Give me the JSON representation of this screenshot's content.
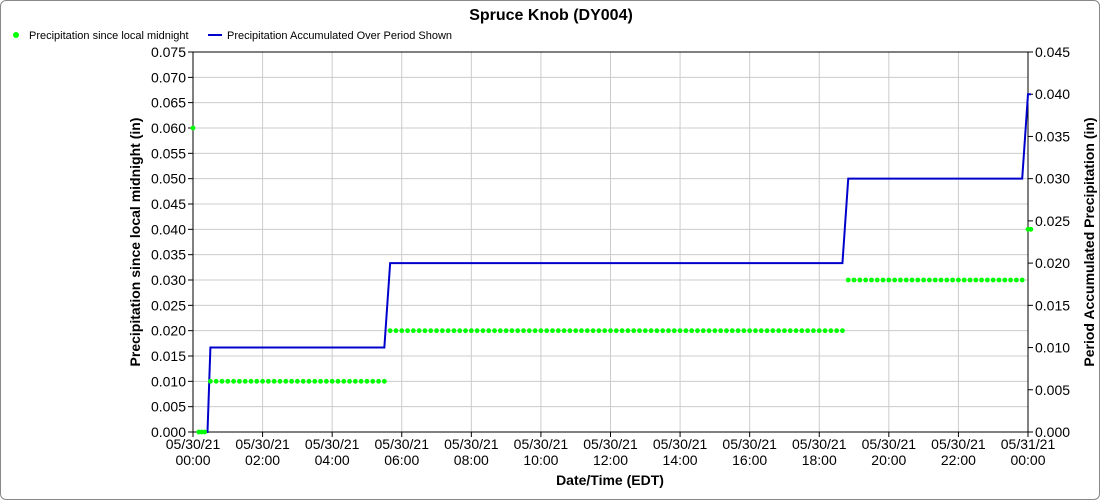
{
  "chart_data": {
    "type": "line",
    "title": "Spruce Knob (DY004)",
    "xlabel": "Date/Time (EDT)",
    "ylabel": "Precipitation since local midnight (in)",
    "ylabel_right": "Period Accumulated Precipitation (in)",
    "ylim": [
      0,
      0.075
    ],
    "ylim_right": [
      0,
      0.045
    ],
    "y_ticks": [
      "0.000",
      "0.005",
      "0.010",
      "0.015",
      "0.020",
      "0.025",
      "0.030",
      "0.035",
      "0.040",
      "0.045",
      "0.050",
      "0.055",
      "0.060",
      "0.065",
      "0.070",
      "0.075"
    ],
    "y_ticks_right": [
      "0.000",
      "0.005",
      "0.010",
      "0.015",
      "0.020",
      "0.025",
      "0.030",
      "0.035",
      "0.040",
      "0.045"
    ],
    "xlim": [
      "05/30/21 00:00",
      "05/31/21 00:00"
    ],
    "x_ticks": [
      {
        "date": "05/30/21",
        "time": "00:00"
      },
      {
        "date": "05/30/21",
        "time": "02:00"
      },
      {
        "date": "05/30/21",
        "time": "04:00"
      },
      {
        "date": "05/30/21",
        "time": "06:00"
      },
      {
        "date": "05/30/21",
        "time": "08:00"
      },
      {
        "date": "05/30/21",
        "time": "10:00"
      },
      {
        "date": "05/30/21",
        "time": "12:00"
      },
      {
        "date": "05/30/21",
        "time": "14:00"
      },
      {
        "date": "05/30/21",
        "time": "16:00"
      },
      {
        "date": "05/30/21",
        "time": "18:00"
      },
      {
        "date": "05/30/21",
        "time": "20:00"
      },
      {
        "date": "05/30/21",
        "time": "22:00"
      },
      {
        "date": "05/31/21",
        "time": "00:00"
      }
    ],
    "grid": true,
    "legend_position": "top-left",
    "series": [
      {
        "name": "Precipitation since local midnight",
        "kind": "scatter",
        "axis": "left",
        "color": "#00ff00",
        "segments": [
          {
            "from": "05/30/21 00:00",
            "to": "05/30/21 00:00",
            "interval_minutes": 0,
            "value": 0.06
          },
          {
            "from": "05/30/21 00:10",
            "to": "05/30/21 00:20",
            "interval_minutes": 5,
            "value": 0.0
          },
          {
            "from": "05/30/21 00:30",
            "to": "05/30/21 05:30",
            "interval_minutes": 10,
            "value": 0.01
          },
          {
            "from": "05/30/21 05:40",
            "to": "05/30/21 18:40",
            "interval_minutes": 10,
            "value": 0.02
          },
          {
            "from": "05/30/21 18:50",
            "to": "05/30/21 23:50",
            "interval_minutes": 10,
            "value": 0.03
          },
          {
            "from": "05/31/21 00:00",
            "to": "05/31/21 00:05",
            "interval_minutes": 5,
            "value": 0.04
          }
        ]
      },
      {
        "name": "Precipitation Accumulated Over Period Shown",
        "kind": "step-line",
        "axis": "right",
        "color": "#0000cc",
        "points": [
          [
            "05/30/21 00:10",
            0.0
          ],
          [
            "05/30/21 00:25",
            0.0
          ],
          [
            "05/30/21 00:30",
            0.01
          ],
          [
            "05/30/21 05:30",
            0.01
          ],
          [
            "05/30/21 05:40",
            0.02
          ],
          [
            "05/30/21 18:40",
            0.02
          ],
          [
            "05/30/21 18:50",
            0.03
          ],
          [
            "05/30/21 23:50",
            0.03
          ],
          [
            "05/31/21 00:00",
            0.04
          ],
          [
            "05/31/21 00:05",
            0.04
          ]
        ]
      }
    ]
  }
}
